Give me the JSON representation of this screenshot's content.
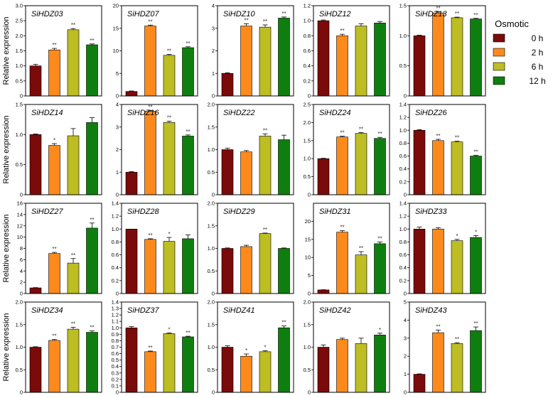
{
  "legend": {
    "title": "Osmotic",
    "entries": [
      {
        "label": "0 h",
        "color": "#7b0a0a"
      },
      {
        "label": "2 h",
        "color": "#ff8a1c"
      },
      {
        "label": "6 h",
        "color": "#bdbd24"
      },
      {
        "label": "12 h",
        "color": "#0e7f0e"
      }
    ]
  },
  "ylabel": "Relative expression",
  "chart_data": [
    {
      "type": "bar",
      "title": "SiHDZ03",
      "categories": [
        "0 h",
        "2 h",
        "6 h",
        "12 h"
      ],
      "values": [
        1.0,
        1.53,
        2.2,
        1.7
      ],
      "errors": [
        0.05,
        0.05,
        0.04,
        0.03
      ],
      "annotations": [
        "",
        "**",
        "**",
        "**"
      ],
      "ylim": [
        0,
        3.0
      ],
      "yticks": [
        "0",
        "0.5",
        "1.0",
        "1.5",
        "2.0",
        "2.5",
        "3.0"
      ]
    },
    {
      "type": "bar",
      "title": "SiHDZ07",
      "categories": [
        "0 h",
        "2 h",
        "6 h",
        "12 h"
      ],
      "values": [
        1.0,
        15.5,
        9.0,
        10.7
      ],
      "errors": [
        0.1,
        0.2,
        0.2,
        0.2
      ],
      "annotations": [
        "",
        "**",
        "**",
        "**"
      ],
      "ylim": [
        0,
        20
      ],
      "yticks": [
        "0",
        "5",
        "10",
        "15",
        "20"
      ]
    },
    {
      "type": "bar",
      "title": "SiHDZ10",
      "categories": [
        "0 h",
        "2 h",
        "6 h",
        "12 h"
      ],
      "values": [
        1.0,
        3.1,
        3.05,
        3.45
      ],
      "errors": [
        0.03,
        0.1,
        0.1,
        0.05
      ],
      "annotations": [
        "",
        "**",
        "**",
        "**"
      ],
      "ylim": [
        0,
        4
      ],
      "yticks": [
        "0",
        "1",
        "2",
        "3",
        "4"
      ]
    },
    {
      "type": "bar",
      "title": "SiHDZ12",
      "categories": [
        "0 h",
        "2 h",
        "6 h",
        "12 h"
      ],
      "values": [
        1.0,
        0.8,
        0.93,
        0.97
      ],
      "errors": [
        0.01,
        0.02,
        0.03,
        0.02
      ],
      "annotations": [
        "",
        "**",
        "",
        ""
      ],
      "ylim": [
        0,
        1.2
      ],
      "yticks": [
        "0",
        "0.2",
        "0.4",
        "0.6",
        "0.8",
        "1.0",
        "1.2"
      ]
    },
    {
      "type": "bar",
      "title": "SiHDZ13",
      "categories": [
        "0 h",
        "2 h",
        "6 h",
        "12 h"
      ],
      "values": [
        1.0,
        1.38,
        1.3,
        1.28
      ],
      "errors": [
        0.01,
        0.02,
        0.01,
        0.01
      ],
      "annotations": [
        "",
        "**",
        "**",
        "**"
      ],
      "ylim": [
        0,
        1.5
      ],
      "yticks": [
        "0",
        "0.5",
        "1.0",
        "1.5"
      ]
    },
    {
      "type": "bar",
      "title": "SiHDZ14",
      "categories": [
        "0 h",
        "2 h",
        "6 h",
        "12 h"
      ],
      "values": [
        1.0,
        0.82,
        0.98,
        1.2
      ],
      "errors": [
        0.01,
        0.03,
        0.12,
        0.08
      ],
      "annotations": [
        "",
        "*",
        "",
        ""
      ],
      "ylim": [
        0,
        1.5
      ],
      "yticks": [
        "0",
        "0.5",
        "1.0",
        "1.5"
      ]
    },
    {
      "type": "bar",
      "title": "SiHDZ16",
      "categories": [
        "0 h",
        "2 h",
        "6 h",
        "12 h"
      ],
      "values": [
        1.0,
        3.7,
        3.2,
        2.6
      ],
      "errors": [
        0.03,
        0.04,
        0.06,
        0.05
      ],
      "annotations": [
        "",
        "**",
        "**",
        "**"
      ],
      "ylim": [
        0,
        4
      ],
      "yticks": [
        "0",
        "1",
        "2",
        "3",
        "4"
      ]
    },
    {
      "type": "bar",
      "title": "SiHDZ22",
      "categories": [
        "0 h",
        "2 h",
        "6 h",
        "12 h"
      ],
      "values": [
        1.0,
        0.95,
        1.3,
        1.22
      ],
      "errors": [
        0.03,
        0.03,
        0.05,
        0.1
      ],
      "annotations": [
        "",
        "",
        "**",
        ""
      ],
      "ylim": [
        0,
        2.0
      ],
      "yticks": [
        "0",
        "0.5",
        "1.0",
        "1.5",
        "2.0"
      ]
    },
    {
      "type": "bar",
      "title": "SiHDZ24",
      "categories": [
        "0 h",
        "2 h",
        "6 h",
        "12 h"
      ],
      "values": [
        1.0,
        1.6,
        1.7,
        1.56
      ],
      "errors": [
        0.01,
        0.02,
        0.02,
        0.03
      ],
      "annotations": [
        "",
        "**",
        "**",
        "**"
      ],
      "ylim": [
        0,
        2.5
      ],
      "yticks": [
        "0",
        "0.5",
        "1.0",
        "1.5",
        "2.0",
        "2.5"
      ]
    },
    {
      "type": "bar",
      "title": "SiHDZ26",
      "categories": [
        "0 h",
        "2 h",
        "6 h",
        "12 h"
      ],
      "values": [
        1.0,
        0.84,
        0.82,
        0.6
      ],
      "errors": [
        0.01,
        0.02,
        0.01,
        0.01
      ],
      "annotations": [
        "",
        "**",
        "**",
        "**"
      ],
      "ylim": [
        0,
        1.4
      ],
      "yticks": [
        "0",
        "0.2",
        "0.4",
        "0.6",
        "0.8",
        "1.0",
        "1.2",
        "1.4"
      ]
    },
    {
      "type": "bar",
      "title": "SiHDZ27",
      "categories": [
        "0 h",
        "2 h",
        "6 h",
        "12 h"
      ],
      "values": [
        1.0,
        7.1,
        5.4,
        11.6
      ],
      "errors": [
        0.05,
        0.2,
        0.8,
        0.9
      ],
      "annotations": [
        "",
        "**",
        "**",
        "**"
      ],
      "ylim": [
        0,
        16
      ],
      "yticks": [
        "0",
        "2",
        "4",
        "6",
        "8",
        "10",
        "12",
        "14",
        "16"
      ]
    },
    {
      "type": "bar",
      "title": "SiHDZ28",
      "categories": [
        "0 h",
        "2 h",
        "6 h",
        "12 h"
      ],
      "values": [
        1.0,
        0.84,
        0.81,
        0.85
      ],
      "errors": [
        0.0,
        0.01,
        0.06,
        0.06
      ],
      "annotations": [
        "",
        "**",
        "*",
        ""
      ],
      "ylim": [
        0,
        1.4
      ],
      "yticks": [
        "0",
        "0.2",
        "0.4",
        "0.6",
        "0.8",
        "1.0",
        "1.2",
        "1.4"
      ]
    },
    {
      "type": "bar",
      "title": "SiHDZ29",
      "categories": [
        "0 h",
        "2 h",
        "6 h",
        "12 h"
      ],
      "values": [
        1.0,
        1.04,
        1.33,
        1.0
      ],
      "errors": [
        0.01,
        0.03,
        0.01,
        0.01
      ],
      "annotations": [
        "",
        "",
        "**",
        ""
      ],
      "ylim": [
        0,
        2.0
      ],
      "yticks": [
        "0",
        "0.5",
        "1.0",
        "1.5",
        "2.0"
      ]
    },
    {
      "type": "bar",
      "title": "SiHDZ31",
      "categories": [
        "0 h",
        "2 h",
        "6 h",
        "12 h"
      ],
      "values": [
        1.0,
        17.0,
        10.7,
        13.8
      ],
      "errors": [
        0.05,
        0.4,
        0.9,
        0.5
      ],
      "annotations": [
        "",
        "**",
        "**",
        "**"
      ],
      "ylim": [
        0,
        25
      ],
      "yticks": [
        "0",
        "5",
        "10",
        "15",
        "20"
      ]
    },
    {
      "type": "bar",
      "title": "SiHDZ33",
      "categories": [
        "0 h",
        "2 h",
        "6 h",
        "12 h"
      ],
      "values": [
        1.0,
        1.0,
        0.82,
        0.87
      ],
      "errors": [
        0.03,
        0.02,
        0.02,
        0.03
      ],
      "annotations": [
        "",
        "",
        "*",
        "*"
      ],
      "ylim": [
        0,
        1.4
      ],
      "yticks": [
        "0",
        "0.2",
        "0.4",
        "0.6",
        "0.8",
        "1.0",
        "1.2",
        "1.4"
      ]
    },
    {
      "type": "bar",
      "title": "SiHDZ34",
      "categories": [
        "0 h",
        "2 h",
        "6 h",
        "12 h"
      ],
      "values": [
        1.0,
        1.15,
        1.4,
        1.33
      ],
      "errors": [
        0.01,
        0.02,
        0.04,
        0.03
      ],
      "annotations": [
        "",
        "**",
        "**",
        "**"
      ],
      "ylim": [
        0,
        2.0
      ],
      "yticks": [
        "0",
        "0.5",
        "1.0",
        "1.5",
        "2.0"
      ]
    },
    {
      "type": "bar",
      "title": "SiHDZ37",
      "categories": [
        "0 h",
        "2 h",
        "6 h",
        "12 h"
      ],
      "values": [
        1.0,
        0.63,
        0.91,
        0.86
      ],
      "errors": [
        0.02,
        0.01,
        0.01,
        0.01
      ],
      "annotations": [
        "",
        "**",
        "*",
        "**"
      ],
      "ylim": [
        0,
        1.4
      ],
      "yticks": [
        "0",
        "0.1",
        "0.2",
        "0.3",
        "0.4",
        "0.5",
        "0.6",
        "0.7",
        "0.8",
        "0.9",
        "1.0",
        "1.1",
        "1.2",
        "1.3",
        "1.4"
      ]
    },
    {
      "type": "bar",
      "title": "SiHDZ41",
      "categories": [
        "0 h",
        "2 h",
        "6 h",
        "12 h"
      ],
      "values": [
        1.0,
        0.8,
        0.9,
        1.43
      ],
      "errors": [
        0.03,
        0.05,
        0.02,
        0.04
      ],
      "annotations": [
        "",
        "*",
        "*",
        "**"
      ],
      "ylim": [
        0,
        2.0
      ],
      "yticks": [
        "0",
        "0.5",
        "1.0",
        "1.5",
        "2.0"
      ]
    },
    {
      "type": "bar",
      "title": "SiHDZ42",
      "categories": [
        "0 h",
        "2 h",
        "6 h",
        "12 h"
      ],
      "values": [
        1.0,
        1.17,
        1.08,
        1.27
      ],
      "errors": [
        0.05,
        0.03,
        0.12,
        0.04
      ],
      "annotations": [
        "",
        "",
        "",
        "*"
      ],
      "ylim": [
        0,
        2.0
      ],
      "yticks": [
        "0",
        "0.5",
        "1.0",
        "1.5",
        "2.0"
      ]
    },
    {
      "type": "bar",
      "title": "SiHDZ43",
      "categories": [
        "0 h",
        "2 h",
        "6 h",
        "12 h"
      ],
      "values": [
        1.0,
        3.3,
        2.7,
        3.42
      ],
      "errors": [
        0.02,
        0.15,
        0.05,
        0.2
      ],
      "annotations": [
        "",
        "**",
        "**",
        "**"
      ],
      "ylim": [
        0,
        5
      ],
      "yticks": [
        "0",
        "1",
        "2",
        "3",
        "4",
        "5"
      ]
    }
  ]
}
